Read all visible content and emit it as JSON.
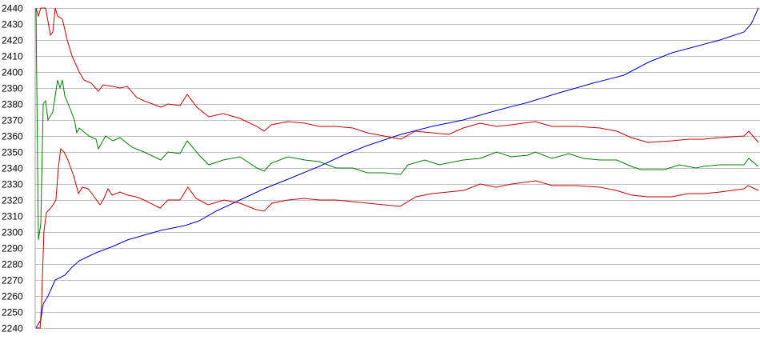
{
  "chart_data": {
    "type": "line",
    "title": "",
    "xlabel": "",
    "ylabel": "",
    "ylim": [
      2240,
      2440
    ],
    "yticks": [
      2240,
      2250,
      2260,
      2270,
      2280,
      2290,
      2300,
      2310,
      2320,
      2330,
      2340,
      2350,
      2360,
      2370,
      2380,
      2390,
      2400,
      2410,
      2420,
      2430,
      2440
    ],
    "xlim": [
      0,
      301
    ],
    "grid": true,
    "legend": "none",
    "series": [
      {
        "color": "#0000cc",
        "x": [
          0,
          2,
          3,
          5,
          8,
          12,
          15,
          18,
          25,
          32,
          38,
          45,
          52,
          62,
          68,
          75,
          85,
          95,
          105,
          118,
          128,
          138,
          152,
          165,
          178,
          192,
          205,
          218,
          232,
          245,
          255,
          265,
          275,
          285,
          295,
          298,
          301
        ],
        "y": [
          2240,
          2245,
          2255,
          2260,
          2270,
          2273,
          2278,
          2282,
          2287,
          2291,
          2295,
          2298,
          2301,
          2304,
          2307,
          2313,
          2320,
          2327,
          2333,
          2341,
          2348,
          2354,
          2361,
          2366,
          2370,
          2376,
          2381,
          2387,
          2393,
          2398,
          2406,
          2412,
          2416,
          2420,
          2425,
          2430,
          2440
        ]
      },
      {
        "color": "#008000",
        "x": [
          0,
          1,
          2,
          3,
          4,
          5,
          7,
          9,
          10,
          11,
          12,
          14,
          16,
          17,
          18,
          22,
          25,
          26,
          29,
          32,
          35,
          40,
          45,
          52,
          55,
          60,
          63,
          68,
          72,
          78,
          85,
          92,
          95,
          98,
          105,
          112,
          118,
          125,
          132,
          138,
          145,
          152,
          155,
          162,
          168,
          178,
          185,
          192,
          198,
          205,
          208,
          215,
          222,
          228,
          235,
          242,
          248,
          252,
          262,
          268,
          275,
          278,
          285,
          295,
          297,
          301
        ],
        "y": [
          2440,
          2295,
          2305,
          2380,
          2382,
          2370,
          2375,
          2395,
          2390,
          2395,
          2385,
          2378,
          2370,
          2362,
          2365,
          2360,
          2358,
          2352,
          2360,
          2357,
          2359,
          2353,
          2350,
          2345,
          2350,
          2349,
          2357,
          2348,
          2342,
          2345,
          2347,
          2340,
          2338,
          2343,
          2347,
          2345,
          2344,
          2340,
          2340,
          2337,
          2337,
          2336,
          2342,
          2345,
          2342,
          2345,
          2346,
          2350,
          2347,
          2348,
          2350,
          2346,
          2349,
          2346,
          2345,
          2345,
          2341,
          2339,
          2339,
          2342,
          2340,
          2341,
          2342,
          2342,
          2346,
          2341
        ]
      },
      {
        "color": "#cc0000",
        "x": [
          0,
          1,
          2,
          4,
          6,
          7,
          8,
          9,
          11,
          13,
          15,
          18,
          20,
          23,
          26,
          28,
          32,
          35,
          38,
          42,
          45,
          52,
          55,
          60,
          63,
          67,
          72,
          78,
          85,
          92,
          95,
          98,
          105,
          112,
          118,
          125,
          132,
          138,
          145,
          152,
          158,
          165,
          172,
          178,
          185,
          192,
          198,
          208,
          215,
          225,
          235,
          242,
          248,
          255,
          265,
          272,
          278,
          285,
          295,
          297,
          301
        ],
        "y": [
          2440,
          2435,
          2440,
          2440,
          2423,
          2425,
          2440,
          2435,
          2433,
          2420,
          2410,
          2400,
          2395,
          2393,
          2388,
          2392,
          2391,
          2390,
          2391,
          2384,
          2382,
          2378,
          2380,
          2379,
          2386,
          2378,
          2372,
          2374,
          2371,
          2366,
          2363,
          2367,
          2369,
          2368,
          2366,
          2366,
          2365,
          2362,
          2360,
          2358,
          2363,
          2362,
          2361,
          2365,
          2368,
          2366,
          2367,
          2369,
          2366,
          2366,
          2365,
          2363,
          2359,
          2356,
          2357,
          2358,
          2358,
          2359,
          2360,
          2363,
          2356
        ]
      },
      {
        "color": "#cc0000",
        "x": [
          0,
          1.7,
          2.3,
          3.3,
          4.3,
          6.7,
          8.3,
          9.3,
          10.3,
          11.7,
          13.3,
          15.7,
          17.7,
          19.3,
          21.7,
          23.3,
          26.7,
          28.3,
          30,
          31.7,
          35,
          38.3,
          41.7,
          45,
          51.7,
          55,
          60,
          63.3,
          66.7,
          71.7,
          78.3,
          85,
          91.7,
          95,
          98.3,
          105,
          111.7,
          118.3,
          125,
          131.7,
          138.3,
          145,
          151.7,
          158.3,
          165,
          171.7,
          178.3,
          185,
          191.7,
          198.3,
          208.3,
          215,
          225,
          235,
          241.7,
          248.3,
          255,
          265,
          271.7,
          278.3,
          285,
          295,
          296.7,
          301
        ],
        "y": [
          2240,
          2240,
          2255,
          2300,
          2312,
          2316,
          2320,
          2340,
          2352,
          2350,
          2345,
          2335,
          2324,
          2328,
          2327,
          2324,
          2317,
          2321,
          2327,
          2323,
          2325,
          2323,
          2322,
          2320,
          2315,
          2320,
          2320,
          2328,
          2321,
          2317,
          2320,
          2318,
          2314,
          2313,
          2318,
          2320,
          2321,
          2320,
          2320,
          2319,
          2318,
          2317,
          2316,
          2322,
          2324,
          2325,
          2326,
          2330,
          2328,
          2330,
          2332,
          2329,
          2329,
          2328,
          2326,
          2323,
          2322,
          2322,
          2324,
          2324,
          2325,
          2327,
          2329,
          2326
        ]
      }
    ]
  }
}
